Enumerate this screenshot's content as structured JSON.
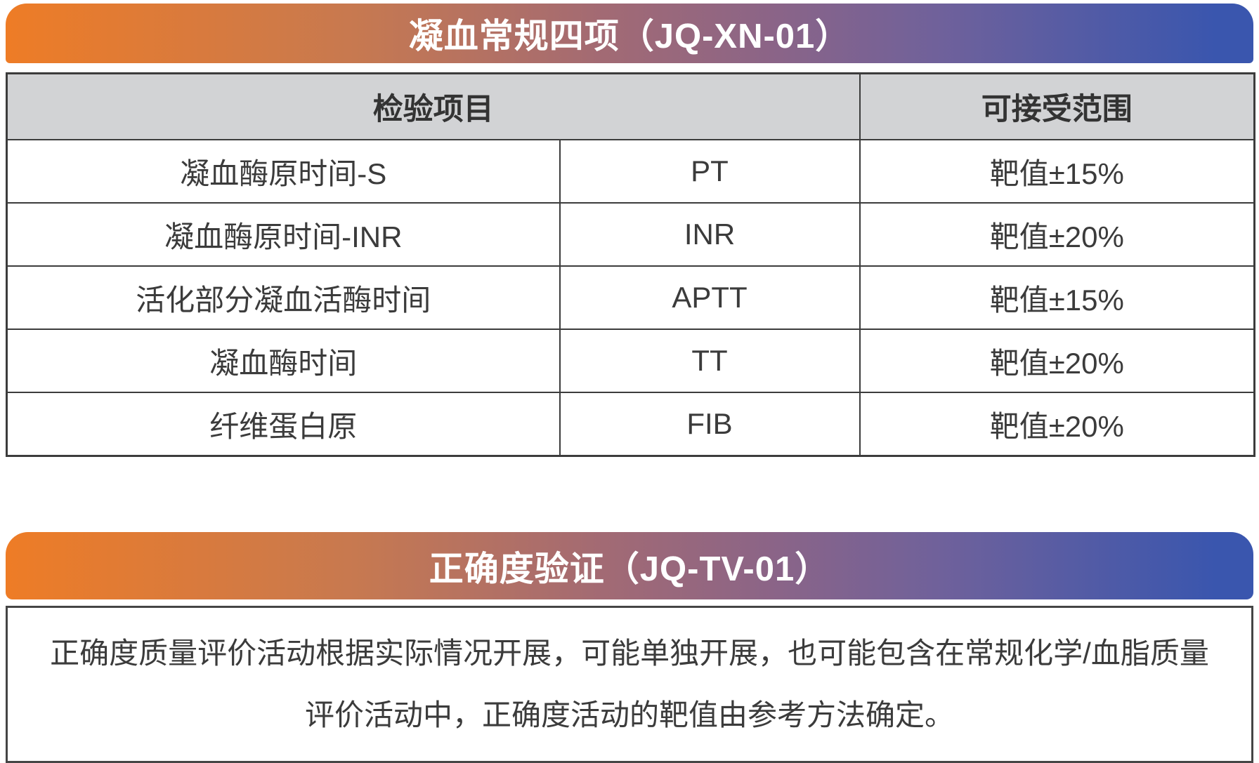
{
  "section1": {
    "title": "凝血常规四项（JQ-XN-01）",
    "table": {
      "headers": {
        "test_item": "检验项目",
        "acceptable_range": "可接受范围"
      },
      "rows": [
        {
          "name": "凝血酶原时间-S",
          "abbr": "PT",
          "range": "靶值±15%"
        },
        {
          "name": "凝血酶原时间-INR",
          "abbr": "INR",
          "range": "靶值±20%"
        },
        {
          "name": "活化部分凝血活酶时间",
          "abbr": "APTT",
          "range": "靶值±15%"
        },
        {
          "name": "凝血酶时间",
          "abbr": "TT",
          "range": "靶值±20%"
        },
        {
          "name": "纤维蛋白原",
          "abbr": "FIB",
          "range": "靶值±20%"
        }
      ]
    }
  },
  "section2": {
    "title": "正确度验证（JQ-TV-01）",
    "note_line1": "正确度质量评价活动根据实际情况开展，可能单独开展，也可能包含在常规化学/血脂质量",
    "note_line2": "评价活动中，正确度活动的靶值由参考方法确定。"
  },
  "colors": {
    "gradient_start": "#ee7c26",
    "gradient_mid": "#a26a74",
    "gradient_end": "#3a56ae",
    "header_bg": "#d2d3d5",
    "table_border": "#3c3c3c",
    "body_text": "#3b3b3b",
    "banner_text": "#ffffff"
  }
}
